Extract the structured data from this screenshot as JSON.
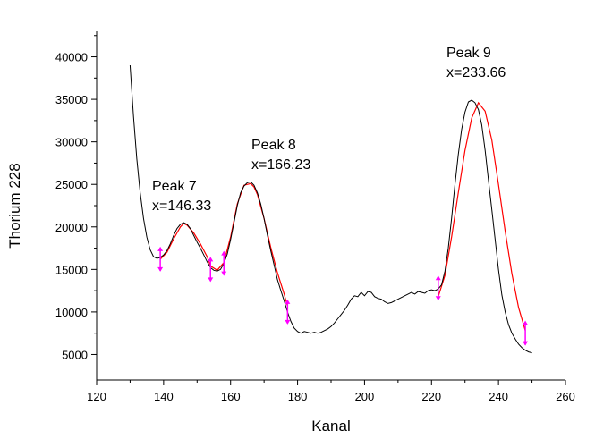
{
  "chart_data": {
    "type": "line",
    "title": "",
    "xlabel": "Kanal",
    "ylabel": "Thorium 228",
    "xlim": [
      120,
      260
    ],
    "ylim": [
      2000,
      43000
    ],
    "xticks": [
      120,
      140,
      160,
      180,
      200,
      220,
      240,
      260
    ],
    "yticks": [
      5000,
      10000,
      15000,
      20000,
      25000,
      30000,
      35000,
      40000
    ],
    "grid": false,
    "legend": "none",
    "series": [
      {
        "style": "measured",
        "color": "#000000",
        "x": [
          130,
          131,
          132,
          133,
          134,
          135,
          136,
          137,
          138,
          139,
          140,
          141,
          142,
          143,
          144,
          145,
          146,
          147,
          148,
          149,
          150,
          151,
          152,
          153,
          154,
          155,
          156,
          157,
          158,
          159,
          160,
          161,
          162,
          163,
          164,
          165,
          166,
          167,
          168,
          169,
          170,
          171,
          172,
          173,
          174,
          175,
          176,
          177,
          178,
          179,
          180,
          181,
          182,
          183,
          184,
          185,
          186,
          187,
          188,
          189,
          190,
          191,
          192,
          193,
          194,
          195,
          196,
          197,
          198,
          199,
          200,
          201,
          202,
          203,
          204,
          205,
          206,
          207,
          208,
          209,
          210,
          211,
          212,
          213,
          214,
          215,
          216,
          217,
          218,
          219,
          220,
          221,
          222,
          223,
          224,
          225,
          226,
          227,
          228,
          229,
          230,
          231,
          232,
          233,
          234,
          235,
          236,
          237,
          238,
          239,
          240,
          241,
          242,
          243,
          244,
          245,
          246,
          247,
          248,
          249,
          250
        ],
        "y": [
          39000,
          33000,
          28000,
          24000,
          21000,
          18800,
          17300,
          16500,
          16300,
          16400,
          16700,
          17200,
          18000,
          19000,
          19800,
          20300,
          20500,
          20300,
          19800,
          19000,
          18200,
          17500,
          16700,
          15900,
          15200,
          14900,
          14800,
          15000,
          15700,
          16800,
          18500,
          20500,
          22500,
          24000,
          24800,
          25200,
          25300,
          24900,
          24000,
          22700,
          21000,
          19000,
          17200,
          15500,
          13800,
          12500,
          11300,
          10000,
          8900,
          8100,
          7700,
          7500,
          7700,
          7600,
          7500,
          7600,
          7500,
          7600,
          7800,
          8000,
          8300,
          8700,
          9200,
          9700,
          10200,
          10800,
          11500,
          11900,
          11800,
          12300,
          11900,
          12400,
          12300,
          11800,
          11600,
          11500,
          11200,
          11000,
          11100,
          11300,
          11500,
          11700,
          11900,
          12100,
          12300,
          12100,
          12400,
          12300,
          12200,
          12500,
          12600,
          12500,
          12700,
          13200,
          14800,
          17500,
          21000,
          25000,
          28500,
          31500,
          33500,
          34700,
          34900,
          34600,
          33800,
          32000,
          29000,
          25500,
          22000,
          18500,
          15000,
          12000,
          10000,
          8500,
          7500,
          6800,
          6200,
          5800,
          5500,
          5300,
          5200
        ]
      },
      {
        "style": "fit",
        "color": "#ff0000",
        "x": [
          139,
          141,
          143,
          145,
          146,
          147,
          149,
          151,
          153,
          154,
          156,
          158,
          160,
          162,
          164,
          166,
          167,
          168,
          170,
          172,
          174,
          176,
          177,
          222,
          224,
          226,
          228,
          230,
          232,
          234,
          236,
          238,
          240,
          242,
          244,
          246,
          248
        ],
        "y": [
          16200,
          17000,
          18600,
          20000,
          20400,
          20200,
          19300,
          18000,
          16500,
          15400,
          14900,
          15800,
          18800,
          22700,
          24900,
          25100,
          24700,
          23800,
          21000,
          17600,
          14600,
          12100,
          10700,
          11800,
          14300,
          18800,
          24000,
          29000,
          32800,
          34600,
          33600,
          30200,
          25000,
          19500,
          14500,
          10500,
          7800
        ]
      }
    ],
    "error_points": [
      {
        "x": 139,
        "y": 16200
      },
      {
        "x": 154,
        "y": 15000
      },
      {
        "x": 158,
        "y": 15700
      },
      {
        "x": 177,
        "y": 10000
      },
      {
        "x": 222,
        "y": 12800
      },
      {
        "x": 248,
        "y": 7500
      }
    ],
    "annotations": [
      {
        "line1": "Peak 7",
        "line2": "x=146.33",
        "x": 146.33
      },
      {
        "line1": "Peak 8",
        "line2": "x=166.23",
        "x": 166.23
      },
      {
        "line1": "Peak 9",
        "line2": "x=233.66",
        "x": 233.66
      }
    ]
  }
}
